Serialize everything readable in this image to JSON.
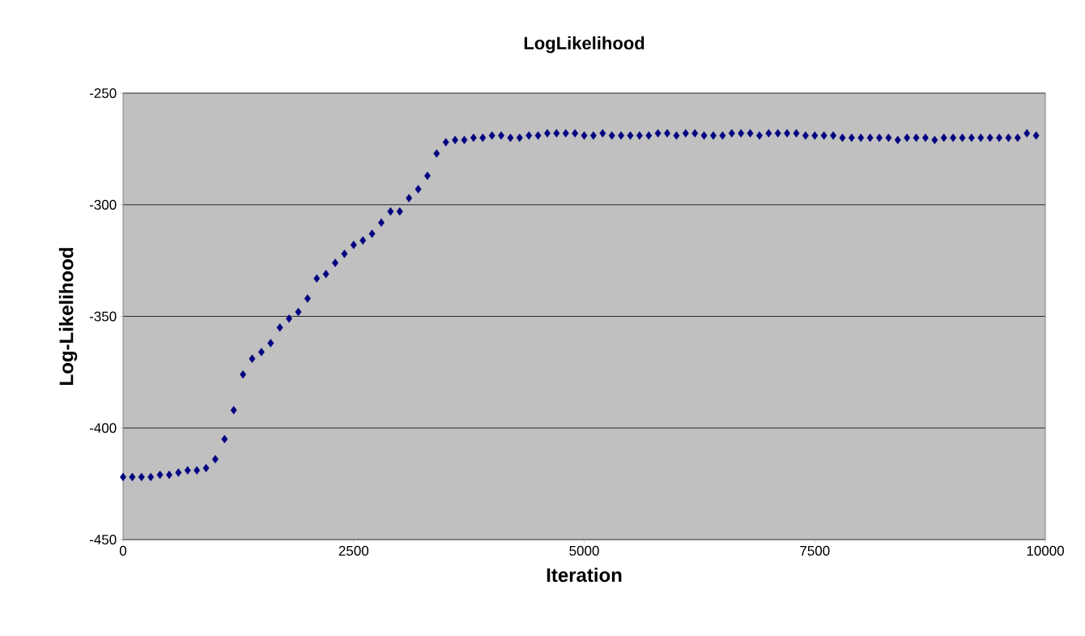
{
  "chart_data": {
    "type": "scatter",
    "title": "LogLikelihood",
    "xlabel": "Iteration",
    "ylabel": "Log-Likelihood",
    "x": [
      0,
      100,
      200,
      300,
      400,
      500,
      600,
      700,
      800,
      900,
      1000,
      1100,
      1200,
      1300,
      1400,
      1500,
      1600,
      1700,
      1800,
      1900,
      2000,
      2100,
      2200,
      2300,
      2400,
      2500,
      2600,
      2700,
      2800,
      2900,
      3000,
      3100,
      3200,
      3300,
      3400,
      3500,
      3600,
      3700,
      3800,
      3900,
      4000,
      4100,
      4200,
      4300,
      4400,
      4500,
      4600,
      4700,
      4800,
      4900,
      5000,
      5100,
      5200,
      5300,
      5400,
      5500,
      5600,
      5700,
      5800,
      5900,
      6000,
      6100,
      6200,
      6300,
      6400,
      6500,
      6600,
      6700,
      6800,
      6900,
      7000,
      7100,
      7200,
      7300,
      7400,
      7500,
      7600,
      7700,
      7800,
      7900,
      8000,
      8100,
      8200,
      8300,
      8400,
      8500,
      8600,
      8700,
      8800,
      8900,
      9000,
      9100,
      9200,
      9300,
      9400,
      9500,
      9600,
      9700,
      9800,
      9900
    ],
    "series": [
      {
        "color": "#000080",
        "values": [
          -422,
          -422,
          -422,
          -422,
          -421,
          -421,
          -420,
          -419,
          -419,
          -418,
          -414,
          -405,
          -392,
          -376,
          -369,
          -366,
          -362,
          -355,
          -351,
          -348,
          -342,
          -333,
          -331,
          -326,
          -322,
          -318,
          -316,
          -313,
          -308,
          -303,
          -303,
          -297,
          -293,
          -287,
          -277,
          -272,
          -271,
          -271,
          -270,
          -270,
          -269,
          -269,
          -270,
          -270,
          -269,
          -269,
          -268,
          -268,
          -268,
          -268,
          -269,
          -269,
          -268,
          -269,
          -269,
          -269,
          -269,
          -269,
          -268,
          -268,
          -269,
          -268,
          -268,
          -269,
          -269,
          -269,
          -268,
          -268,
          -268,
          -269,
          -268,
          -268,
          -268,
          -268,
          -269,
          -269,
          -269,
          -269,
          -270,
          -270,
          -270,
          -270,
          -270,
          -270,
          -271,
          -270,
          -270,
          -270,
          -271,
          -270,
          -270,
          -270,
          -270,
          -270,
          -270,
          -270,
          -270,
          -270,
          -268,
          -269
        ]
      }
    ],
    "xlim": [
      0,
      10000
    ],
    "xticks": [
      0,
      2500,
      5000,
      7500,
      10000
    ],
    "ylim": [
      -450,
      -250
    ],
    "yticks": [
      -450,
      -400,
      -350,
      -300,
      -250
    ],
    "grid": "y",
    "marker": "diamond"
  }
}
